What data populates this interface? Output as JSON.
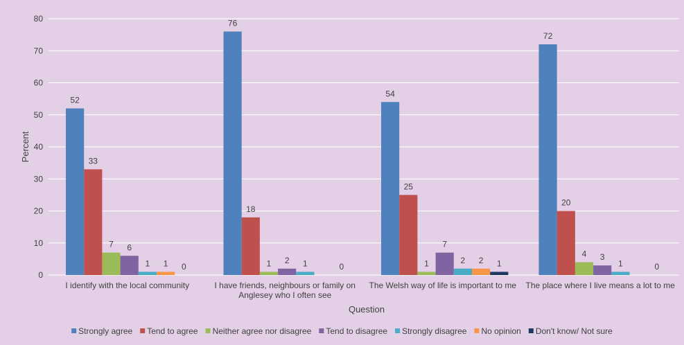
{
  "chart_data": {
    "type": "bar",
    "title": "",
    "xlabel": "Question",
    "ylabel": "Percent",
    "ylim": [
      0,
      80
    ],
    "yticks": [
      0,
      10,
      20,
      30,
      40,
      50,
      60,
      70,
      80
    ],
    "grid": true,
    "legend": "bottom",
    "categories": [
      [
        "I identify with the local community"
      ],
      [
        "I have friends, neighbours or family on",
        "Anglesey who I often see"
      ],
      [
        "The Welsh way of life is important to me"
      ],
      [
        "The place where I live means a lot to me"
      ]
    ],
    "series": [
      {
        "name": "Strongly agree",
        "color": "#4f81bd",
        "values": [
          52,
          76,
          54,
          72
        ]
      },
      {
        "name": "Tend to agree",
        "color": "#c0504d",
        "values": [
          33,
          18,
          25,
          20
        ]
      },
      {
        "name": "Neither agree nor disagree",
        "color": "#9bbb59",
        "values": [
          7,
          1,
          1,
          4
        ]
      },
      {
        "name": "Tend to disagree",
        "color": "#8064a2",
        "values": [
          6,
          2,
          7,
          3
        ]
      },
      {
        "name": "Strongly disagree",
        "color": "#4bacc6",
        "values": [
          1,
          1,
          2,
          1
        ]
      },
      {
        "name": "No opinion",
        "color": "#f79646",
        "values": [
          1,
          null,
          2,
          null
        ]
      },
      {
        "name": "Don't know/ Not sure",
        "color": "#1f3864",
        "values": [
          0,
          0,
          1,
          0
        ]
      }
    ]
  }
}
